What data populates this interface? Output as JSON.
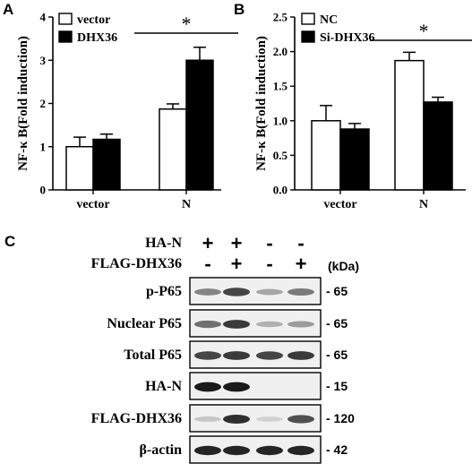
{
  "panels": {
    "a": {
      "letter": "A"
    },
    "b": {
      "letter": "B"
    },
    "c": {
      "letter": "C"
    }
  },
  "chart_data": [
    {
      "type": "bar",
      "ylabel": "NF-κ B(Fold induction)",
      "ylim": [
        0,
        4
      ],
      "yticks": [
        "0",
        "1",
        "2",
        "3",
        "4"
      ],
      "categories": [
        "vector",
        "N"
      ],
      "series": [
        {
          "name": "vector",
          "values": [
            1.0,
            1.87
          ],
          "errors": [
            0.22,
            0.12
          ],
          "fill": "#ffffff"
        },
        {
          "name": "DHX36",
          "values": [
            1.17,
            3.0
          ],
          "errors": [
            0.12,
            0.3
          ],
          "fill": "#000000"
        }
      ],
      "significance": {
        "label": "*",
        "group": 1
      },
      "legend_position": "top-left"
    },
    {
      "type": "bar",
      "ylabel": "NF-κ B(Fold induction)",
      "ylim": [
        0,
        2.5
      ],
      "yticks": [
        "0.0",
        "0.5",
        "1.0",
        "1.5",
        "2.0",
        "2.5"
      ],
      "categories": [
        "vector",
        "N"
      ],
      "series": [
        {
          "name": "NC",
          "values": [
            1.0,
            1.87
          ],
          "errors": [
            0.22,
            0.12
          ],
          "fill": "#ffffff"
        },
        {
          "name": "Si-DHX36",
          "values": [
            0.88,
            1.27
          ],
          "errors": [
            0.08,
            0.07
          ],
          "fill": "#000000"
        }
      ],
      "significance": {
        "label": "*",
        "group": 1
      },
      "legend_position": "top-left"
    }
  ],
  "blot": {
    "conditions": [
      {
        "label": "HA-N",
        "signs": [
          "+",
          "+",
          "-",
          "-"
        ]
      },
      {
        "label": "FLAG-DHX36",
        "signs": [
          "-",
          "+",
          "-",
          "+"
        ]
      }
    ],
    "unit": "(kDa)",
    "rows": [
      {
        "label": "p-P65",
        "mw": "- 65",
        "intensity": [
          0.45,
          0.75,
          0.3,
          0.5
        ]
      },
      {
        "label": "Nuclear P65",
        "mw": "- 65",
        "intensity": [
          0.55,
          0.8,
          0.25,
          0.35
        ]
      },
      {
        "label": "Total P65",
        "mw": "- 65",
        "intensity": [
          0.75,
          0.8,
          0.75,
          0.8
        ]
      },
      {
        "label": "HA-N",
        "mw": "- 15",
        "intensity": [
          0.95,
          0.95,
          0.0,
          0.0
        ]
      },
      {
        "label": "FLAG-DHX36",
        "mw": "- 120",
        "intensity": [
          0.15,
          0.85,
          0.1,
          0.7
        ]
      },
      {
        "label": "β-actin",
        "mw": "- 42",
        "intensity": [
          0.9,
          0.9,
          0.9,
          0.9
        ]
      }
    ]
  }
}
